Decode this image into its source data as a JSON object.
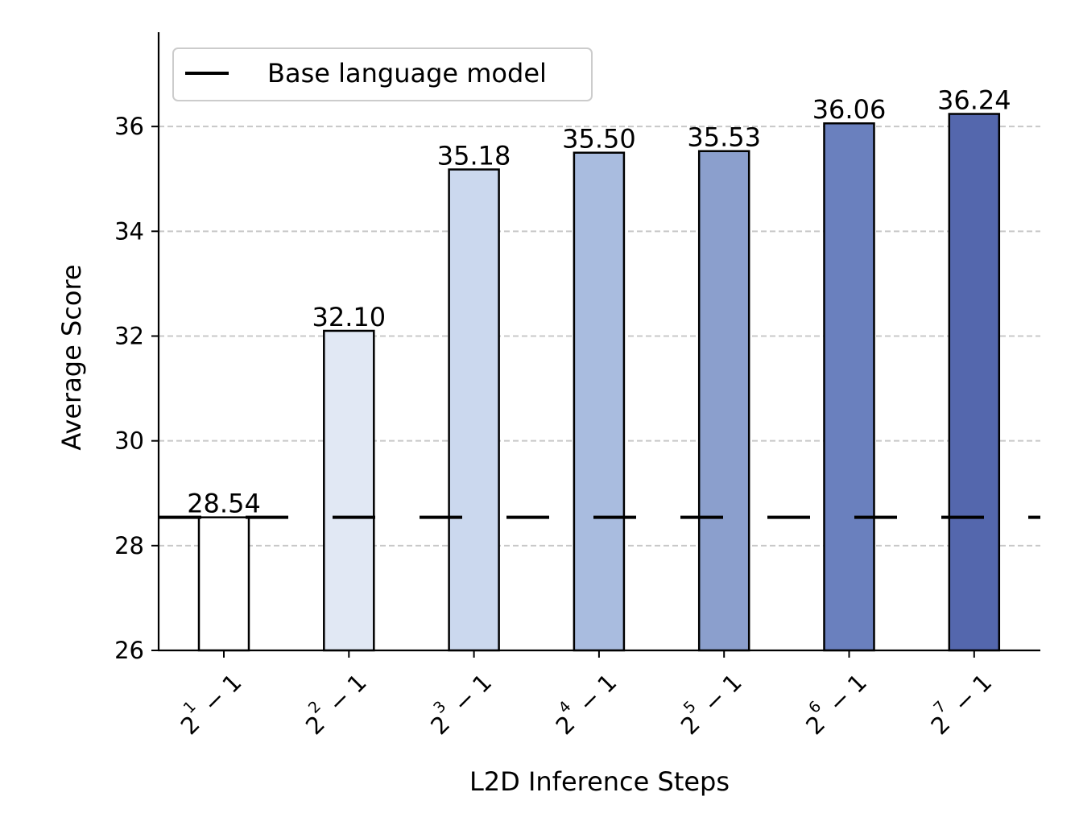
{
  "chart_data": {
    "type": "bar",
    "title": "",
    "xlabel": "L2D Inference Steps",
    "ylabel": "Average Score",
    "ylim": [
      26,
      37.8
    ],
    "yticks": [
      26,
      28,
      30,
      32,
      34,
      36
    ],
    "grid": "y-dashed",
    "legend_position": "top-left",
    "categories": [
      {
        "base": "2",
        "exp": "1",
        "suffix": " − 1"
      },
      {
        "base": "2",
        "exp": "2",
        "suffix": " − 1"
      },
      {
        "base": "2",
        "exp": "3",
        "suffix": " − 1"
      },
      {
        "base": "2",
        "exp": "4",
        "suffix": " − 1"
      },
      {
        "base": "2",
        "exp": "5",
        "suffix": " − 1"
      },
      {
        "base": "2",
        "exp": "6",
        "suffix": " − 1"
      },
      {
        "base": "2",
        "exp": "7",
        "suffix": " − 1"
      }
    ],
    "values": [
      28.54,
      32.1,
      35.18,
      35.5,
      35.53,
      36.06,
      36.24
    ],
    "value_labels": [
      "28.54",
      "32.10",
      "35.18",
      "35.50",
      "35.53",
      "36.06",
      "36.24"
    ],
    "bar_colors": [
      "#ffffff",
      "#e1e8f4",
      "#cbd8ee",
      "#a9bcdf",
      "#8b9fcd",
      "#6a80be",
      "#5467ad"
    ],
    "baseline": {
      "label": "Base language model",
      "value": 28.54,
      "color": "#000000"
    }
  }
}
